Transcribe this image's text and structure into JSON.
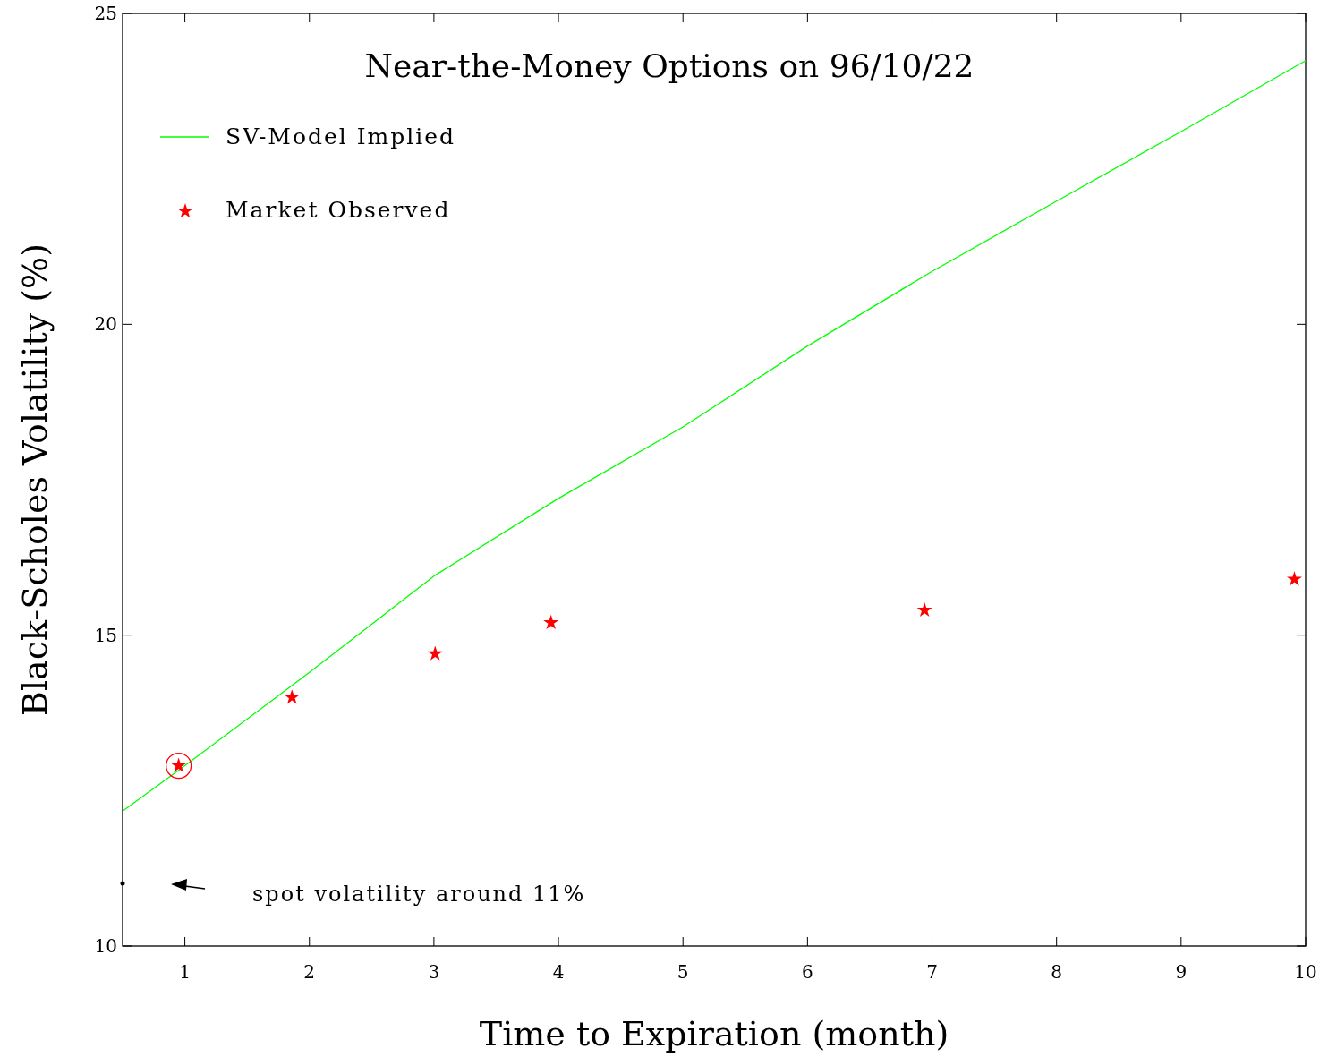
{
  "chart_data": {
    "type": "scatter",
    "title": "Near-the-Money Options on 96/10/22",
    "xlabel": "Time to Expiration (month)",
    "ylabel": "Black-Scholes Volatility (%)",
    "xlim": [
      0.5,
      10
    ],
    "xticks": [
      1,
      2,
      3,
      4,
      5,
      6,
      7,
      8,
      9,
      10
    ],
    "ylim": [
      10,
      25
    ],
    "yticks": [
      10,
      15,
      20,
      25
    ],
    "grid": false,
    "legend": "top left",
    "series": [
      {
        "name": "SV-Model Implied",
        "type": "line",
        "color": "#00ff00",
        "marker": "none",
        "x": [
          0.5,
          1,
          2,
          3,
          4,
          5,
          6,
          7,
          8,
          9,
          10
        ],
        "values": [
          12.17,
          12.9,
          14.4,
          15.95,
          17.2,
          18.35,
          19.65,
          20.85,
          21.98,
          23.1,
          24.24
        ]
      },
      {
        "name": "Market Observed",
        "color": "#ff0000",
        "marker": "star",
        "x": [
          0.95,
          1.86,
          3.01,
          3.94,
          6.94,
          9.91
        ],
        "values": [
          12.9,
          14.0,
          14.7,
          15.2,
          15.4,
          15.9
        ]
      }
    ],
    "annotations": [
      "spot volatility around 11%"
    ]
  }
}
